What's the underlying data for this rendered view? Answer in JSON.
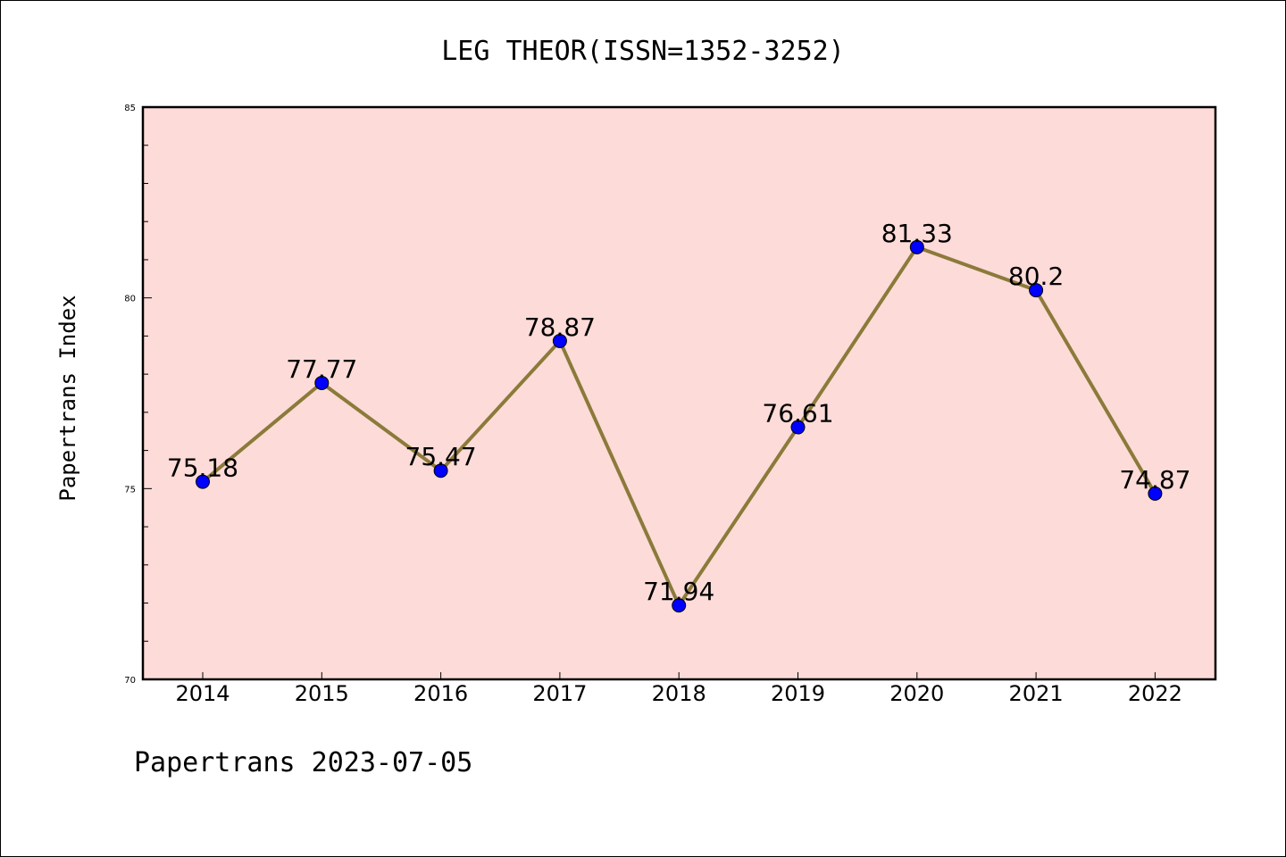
{
  "chart_data": {
    "type": "line",
    "title": "LEG THEOR(ISSN=1352-3252)",
    "ylabel": "Papertrans Index",
    "xlabel": "",
    "categories": [
      "2014",
      "2015",
      "2016",
      "2017",
      "2018",
      "2019",
      "2020",
      "2021",
      "2022"
    ],
    "series": [
      {
        "values": [
          75.18,
          77.77,
          75.47,
          78.87,
          71.94,
          76.61,
          81.33,
          80.2,
          74.87
        ],
        "labels": [
          "75.18",
          "77.77",
          "75.47",
          "78.87",
          "71.94",
          "76.61",
          "81.33",
          "80.2",
          "74.87"
        ]
      }
    ],
    "ylim": [
      70,
      85
    ],
    "y_ticks": [
      "70",
      "75",
      "80",
      "85"
    ],
    "y_minor_step": 1,
    "grid": false,
    "footer": "Papertrans 2023-07-05",
    "colors": {
      "plot_background": "#fddbd8",
      "line": "#8b7a3a",
      "marker": "#0000ff",
      "axis": "#000000"
    }
  }
}
